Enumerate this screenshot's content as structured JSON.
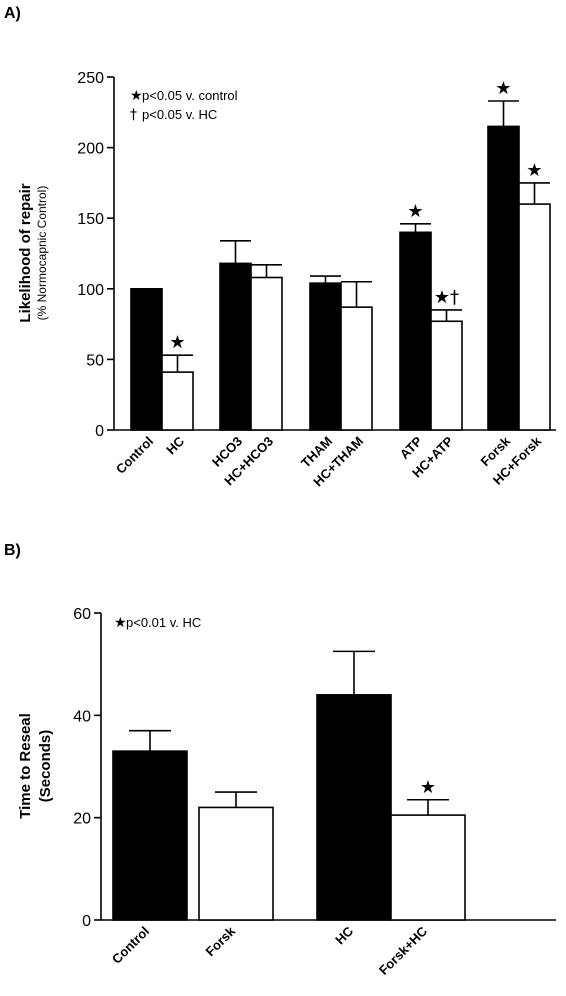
{
  "chart_data": [
    {
      "panel_label": "A)",
      "type": "bar",
      "ylabel": "Likelihood of repair",
      "ylabel_sub": "(% Normocapnic Control)",
      "ylim": [
        0,
        250
      ],
      "yticks": [
        0,
        50,
        100,
        150,
        200,
        250
      ],
      "grid": false,
      "legend": {
        "placement": "top-left",
        "entries": [
          {
            "symbol": "★",
            "text": "p<0.05 v. control"
          },
          {
            "symbol": "†",
            "text": "p<0.05 v. HC"
          }
        ]
      },
      "categories": [
        "Control",
        "HC",
        "HCO3",
        "HC+HCO3",
        "THAM",
        "HC+THAM",
        "ATP",
        "HC+ATP",
        "Forsk",
        "HC+Forsk"
      ],
      "values": [
        100,
        41,
        118,
        108,
        104,
        87,
        140,
        77,
        215,
        160
      ],
      "errors": [
        0,
        12,
        16,
        9,
        5,
        18,
        6,
        8,
        18,
        15
      ],
      "fills": [
        "black",
        "white",
        "black",
        "white",
        "black",
        "white",
        "black",
        "white",
        "black",
        "white"
      ],
      "markers": [
        "",
        "★",
        "",
        "",
        "",
        "",
        "★",
        "★†",
        "★",
        "★"
      ]
    },
    {
      "panel_label": "B)",
      "type": "bar",
      "ylabel": "Time to Reseal",
      "ylabel_sub": "(Seconds)",
      "ylim": [
        0,
        60
      ],
      "yticks": [
        0,
        20,
        40,
        60
      ],
      "grid": false,
      "legend": {
        "placement": "top-left",
        "entries": [
          {
            "symbol": "★",
            "text": "p<0.01 v. HC"
          }
        ]
      },
      "categories": [
        "Control",
        "Forsk",
        "HC",
        "Forsk+HC"
      ],
      "values": [
        33,
        22,
        44,
        20.5
      ],
      "errors": [
        4,
        3,
        8.5,
        3
      ],
      "fills": [
        "black",
        "white",
        "black",
        "white"
      ],
      "markers": [
        "",
        "",
        "",
        "★"
      ]
    }
  ]
}
